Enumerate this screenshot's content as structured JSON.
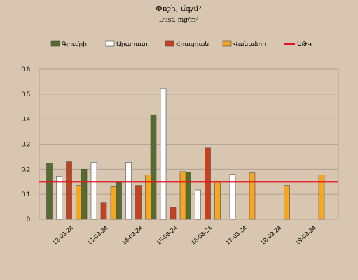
{
  "chart_data": {
    "type": "bar",
    "title": "Փոշի, մգ/մ³",
    "subtitle": "Dust, mg/m³",
    "categories": [
      "12-03-24",
      "13-03-24",
      "14-03-24",
      "15-03-24",
      "16-03-24",
      "17-03-24",
      "18-03-24",
      "19-03-24"
    ],
    "trailing_tick": ".",
    "series": [
      {
        "name": "Գյումրի",
        "color": "#556b2f",
        "values": [
          0.225,
          0.2,
          0.147,
          0.418,
          0.187,
          null,
          null,
          null
        ]
      },
      {
        "name": "Արարատ",
        "color": "#ffffff",
        "values": [
          0.172,
          0.228,
          0.228,
          0.522,
          0.117,
          0.18,
          null,
          null
        ]
      },
      {
        "name": "Հրազդան",
        "color": "#c8411e",
        "values": [
          0.23,
          0.065,
          0.135,
          0.048,
          0.285,
          null,
          null,
          null
        ]
      },
      {
        "name": "Վանաձոր",
        "color": "#f5a623",
        "values": [
          0.135,
          0.13,
          0.177,
          0.19,
          0.15,
          0.185,
          0.135,
          0.177
        ]
      }
    ],
    "reference_line": {
      "name": "ՍԹԿ",
      "value": 0.15,
      "color": "#e0141e"
    },
    "ylim": [
      0,
      0.6
    ],
    "yticks": [
      "0",
      "0.1",
      "0.2",
      "0.3",
      "0.4",
      "0.5",
      "0.6"
    ],
    "xlabel": "",
    "ylabel": "",
    "grid": true,
    "legend_position": "top"
  }
}
